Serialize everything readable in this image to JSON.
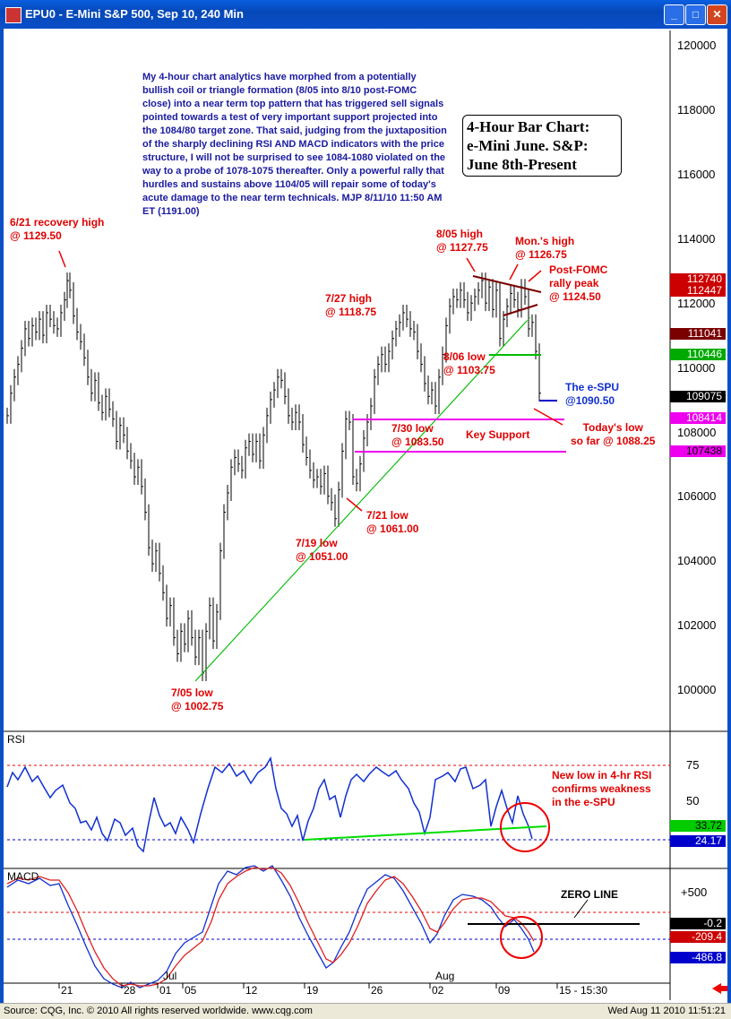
{
  "window": {
    "title": "EPU0 - E-Mini S&P 500, Sep 10, 240 Min",
    "min_label": "_",
    "max_label": "□",
    "close_label": "✕"
  },
  "chart_data": {
    "type": "ohlc",
    "title": "4-Hour Bar Chart: e-Mini June. S&P: June 8th-Present",
    "title_lines": [
      "4-Hour Bar Chart:",
      "e-Mini June. S&P:",
      "June 8th-Present"
    ],
    "y_ticks": [
      "120000",
      "118000",
      "116000",
      "114000",
      "112000",
      "110000",
      "108000",
      "106000",
      "104000",
      "102000",
      "100000"
    ],
    "ylim": [
      99500,
      120800
    ],
    "x_ticks": [
      "21",
      "28",
      "01",
      "05",
      "12",
      "19",
      "26",
      "02",
      "09",
      "15 - 15:30"
    ],
    "month_labels": [
      "Jul",
      "Aug"
    ],
    "price_series": [
      [
        0,
        1085
      ],
      [
        4,
        1092
      ],
      [
        8,
        1097
      ],
      [
        12,
        1101
      ],
      [
        16,
        1106
      ],
      [
        20,
        1112
      ],
      [
        24,
        1109
      ],
      [
        28,
        1113
      ],
      [
        32,
        1111
      ],
      [
        36,
        1115
      ],
      [
        40,
        1110
      ],
      [
        44,
        1117
      ],
      [
        48,
        1115
      ],
      [
        52,
        1113
      ],
      [
        56,
        1112
      ],
      [
        60,
        1117
      ],
      [
        64,
        1121
      ],
      [
        67,
        1127
      ],
      [
        70,
        1124
      ],
      [
        74,
        1116
      ],
      [
        78,
        1111
      ],
      [
        82,
        1108
      ],
      [
        86,
        1103
      ],
      [
        90,
        1097
      ],
      [
        94,
        1092
      ],
      [
        98,
        1096
      ],
      [
        102,
        1089
      ],
      [
        106,
        1086
      ],
      [
        110,
        1091
      ],
      [
        114,
        1087
      ],
      [
        118,
        1084
      ],
      [
        122,
        1077
      ],
      [
        126,
        1082
      ],
      [
        130,
        1079
      ],
      [
        134,
        1074
      ],
      [
        138,
        1071
      ],
      [
        142,
        1066
      ],
      [
        146,
        1069
      ],
      [
        150,
        1063
      ],
      [
        154,
        1055
      ],
      [
        158,
        1044
      ],
      [
        162,
        1039
      ],
      [
        166,
        1043
      ],
      [
        170,
        1036
      ],
      [
        174,
        1030
      ],
      [
        178,
        1022
      ],
      [
        182,
        1026
      ],
      [
        186,
        1016
      ],
      [
        190,
        1011
      ],
      [
        194,
        1018
      ],
      [
        198,
        1014
      ],
      [
        202,
        1022
      ],
      [
        206,
        1016
      ],
      [
        210,
        1010
      ],
      [
        214,
        1016
      ],
      [
        218,
        1005
      ],
      [
        222,
        1018
      ],
      [
        226,
        1026
      ],
      [
        230,
        1015
      ],
      [
        234,
        1024
      ],
      [
        238,
        1043
      ],
      [
        242,
        1055
      ],
      [
        246,
        1061
      ],
      [
        250,
        1069
      ],
      [
        254,
        1072
      ],
      [
        258,
        1070
      ],
      [
        262,
        1068
      ],
      [
        266,
        1075
      ],
      [
        270,
        1077
      ],
      [
        274,
        1073
      ],
      [
        278,
        1077
      ],
      [
        282,
        1071
      ],
      [
        286,
        1079
      ],
      [
        290,
        1085
      ],
      [
        294,
        1090
      ],
      [
        298,
        1093
      ],
      [
        302,
        1097
      ],
      [
        306,
        1096
      ],
      [
        310,
        1091
      ],
      [
        314,
        1085
      ],
      [
        318,
        1083
      ],
      [
        322,
        1086
      ],
      [
        326,
        1083
      ],
      [
        330,
        1076
      ],
      [
        334,
        1072
      ],
      [
        338,
        1068
      ],
      [
        342,
        1065
      ],
      [
        346,
        1066
      ],
      [
        350,
        1063
      ],
      [
        354,
        1067
      ],
      [
        358,
        1060
      ],
      [
        362,
        1058
      ],
      [
        366,
        1053
      ],
      [
        370,
        1062
      ],
      [
        374,
        1074
      ],
      [
        378,
        1084
      ],
      [
        382,
        1083
      ],
      [
        386,
        1066
      ],
      [
        390,
        1064
      ],
      [
        394,
        1070
      ],
      [
        398,
        1078
      ],
      [
        402,
        1083
      ],
      [
        406,
        1088
      ],
      [
        410,
        1097
      ],
      [
        414,
        1101
      ],
      [
        418,
        1104
      ],
      [
        422,
        1101
      ],
      [
        426,
        1105
      ],
      [
        430,
        1109
      ],
      [
        434,
        1112
      ],
      [
        438,
        1114
      ],
      [
        442,
        1117
      ],
      [
        446,
        1115
      ],
      [
        450,
        1112
      ],
      [
        454,
        1111
      ],
      [
        458,
        1105
      ],
      [
        462,
        1101
      ],
      [
        466,
        1095
      ],
      [
        470,
        1091
      ],
      [
        474,
        1093
      ],
      [
        478,
        1088
      ],
      [
        482,
        1097
      ],
      [
        486,
        1104
      ],
      [
        490,
        1113
      ],
      [
        494,
        1119
      ],
      [
        498,
        1122
      ],
      [
        502,
        1121
      ],
      [
        506,
        1124
      ],
      [
        510,
        1121
      ],
      [
        514,
        1117
      ],
      [
        518,
        1120
      ],
      [
        522,
        1122
      ],
      [
        526,
        1124
      ],
      [
        530,
        1127
      ],
      [
        534,
        1120
      ],
      [
        538,
        1125
      ],
      [
        542,
        1118
      ],
      [
        546,
        1124
      ],
      [
        550,
        1109
      ],
      [
        554,
        1115
      ],
      [
        558,
        1119
      ],
      [
        562,
        1123
      ],
      [
        566,
        1121
      ],
      [
        570,
        1118
      ],
      [
        574,
        1125
      ],
      [
        578,
        1122
      ],
      [
        582,
        1112
      ],
      [
        586,
        1114
      ],
      [
        590,
        1105
      ],
      [
        594,
        1092
      ]
    ],
    "annotations": {
      "recovery_high": [
        "6/21 recovery high",
        "@ 1129.50"
      ],
      "low_705": [
        "7/05 low",
        "@ 1002.75"
      ],
      "low_719": [
        "7/19 low",
        "@ 1051.00"
      ],
      "low_721": [
        "7/21 low",
        "@ 1061.00"
      ],
      "high_727": [
        "7/27 high",
        "@ 1118.75"
      ],
      "low_730": [
        "7/30 low",
        "@ 1083.50"
      ],
      "key_support": "Key Support",
      "high_805": [
        "8/05 high",
        "@ 1127.75"
      ],
      "low_806": [
        "8/06 low",
        "@ 1103.75"
      ],
      "mon_high": [
        "Mon.'s high",
        "@ 1126.75"
      ],
      "fomc_peak": [
        "Post-FOMC",
        "rally peak",
        "@ 1124.50"
      ],
      "espu": [
        "The e-SPU",
        "@1090.50"
      ],
      "today_low": [
        "Today's low",
        "so far @ 1088.25"
      ],
      "commentary": "My 4-hour chart analytics have morphed from a potentially bullish coil or triangle formation (8/05 into 8/10 post-FOMC close) into a near term top pattern that has triggered sell signals pointed towards a test of very important support projected into the 1084/80 target zone.  That said, judging from the juxtaposition of the sharply declining RSI AND MACD indicators with the price structure, I will not be surprised to see 1084-1080 violated on the way to a probe of 1078-1075 thereafter. Only a powerful rally that hurdles and sustains above 1104/05 will repair some of today's acute damage to the near term technicals.  MJP 8/11/10  11:50 AM ET  (1191.00)"
    },
    "price_tags": [
      {
        "label": "112740",
        "bg": "#cc0000",
        "fg": "#ffffff"
      },
      {
        "label": "112447",
        "bg": "#cc0000",
        "fg": "#ffffff"
      },
      {
        "label": "111041",
        "bg": "#7a0000",
        "fg": "#ffffff"
      },
      {
        "label": "110446",
        "bg": "#00aa00",
        "fg": "#ffffff"
      },
      {
        "label": "109075",
        "bg": "#000000",
        "fg": "#ffffff"
      },
      {
        "label": "108414",
        "bg": "#ee00ee",
        "fg": "#ffffff"
      },
      {
        "label": "107438",
        "bg": "#ee00ee",
        "fg": "#000000"
      }
    ],
    "rsi": {
      "label": "RSI",
      "ticks": [
        "75",
        "50"
      ],
      "tags": [
        {
          "label": "33.72",
          "bg": "#00cc00",
          "fg": "#000000"
        },
        {
          "label": "24.17",
          "bg": "#0000cc",
          "fg": "#ffffff"
        }
      ],
      "note": [
        "New low in 4-hr RSI",
        "confirms weakness",
        "in the e-SPU"
      ]
    },
    "macd": {
      "label": "MACD",
      "ticks": [
        "+500"
      ],
      "zero_line_label": "ZERO LINE",
      "tags": [
        {
          "label": "-0.2",
          "bg": "#000000",
          "fg": "#ffffff"
        },
        {
          "label": "-209.4",
          "bg": "#cc0000",
          "fg": "#ffffff"
        },
        {
          "label": "-486.8",
          "bg": "#0000cc",
          "fg": "#ffffff"
        }
      ]
    },
    "colors": {
      "bars": "#000000",
      "trendline": "#00bb00",
      "support": "#ee00ee",
      "annotation": "#e00000",
      "note": "#1a1aa0"
    }
  },
  "footer": {
    "source": "Source: CQG, Inc. © 2010 All rights reserved worldwide.  www.cqg.com",
    "timestamp": "Wed Aug 11 2010 11:51:21"
  }
}
